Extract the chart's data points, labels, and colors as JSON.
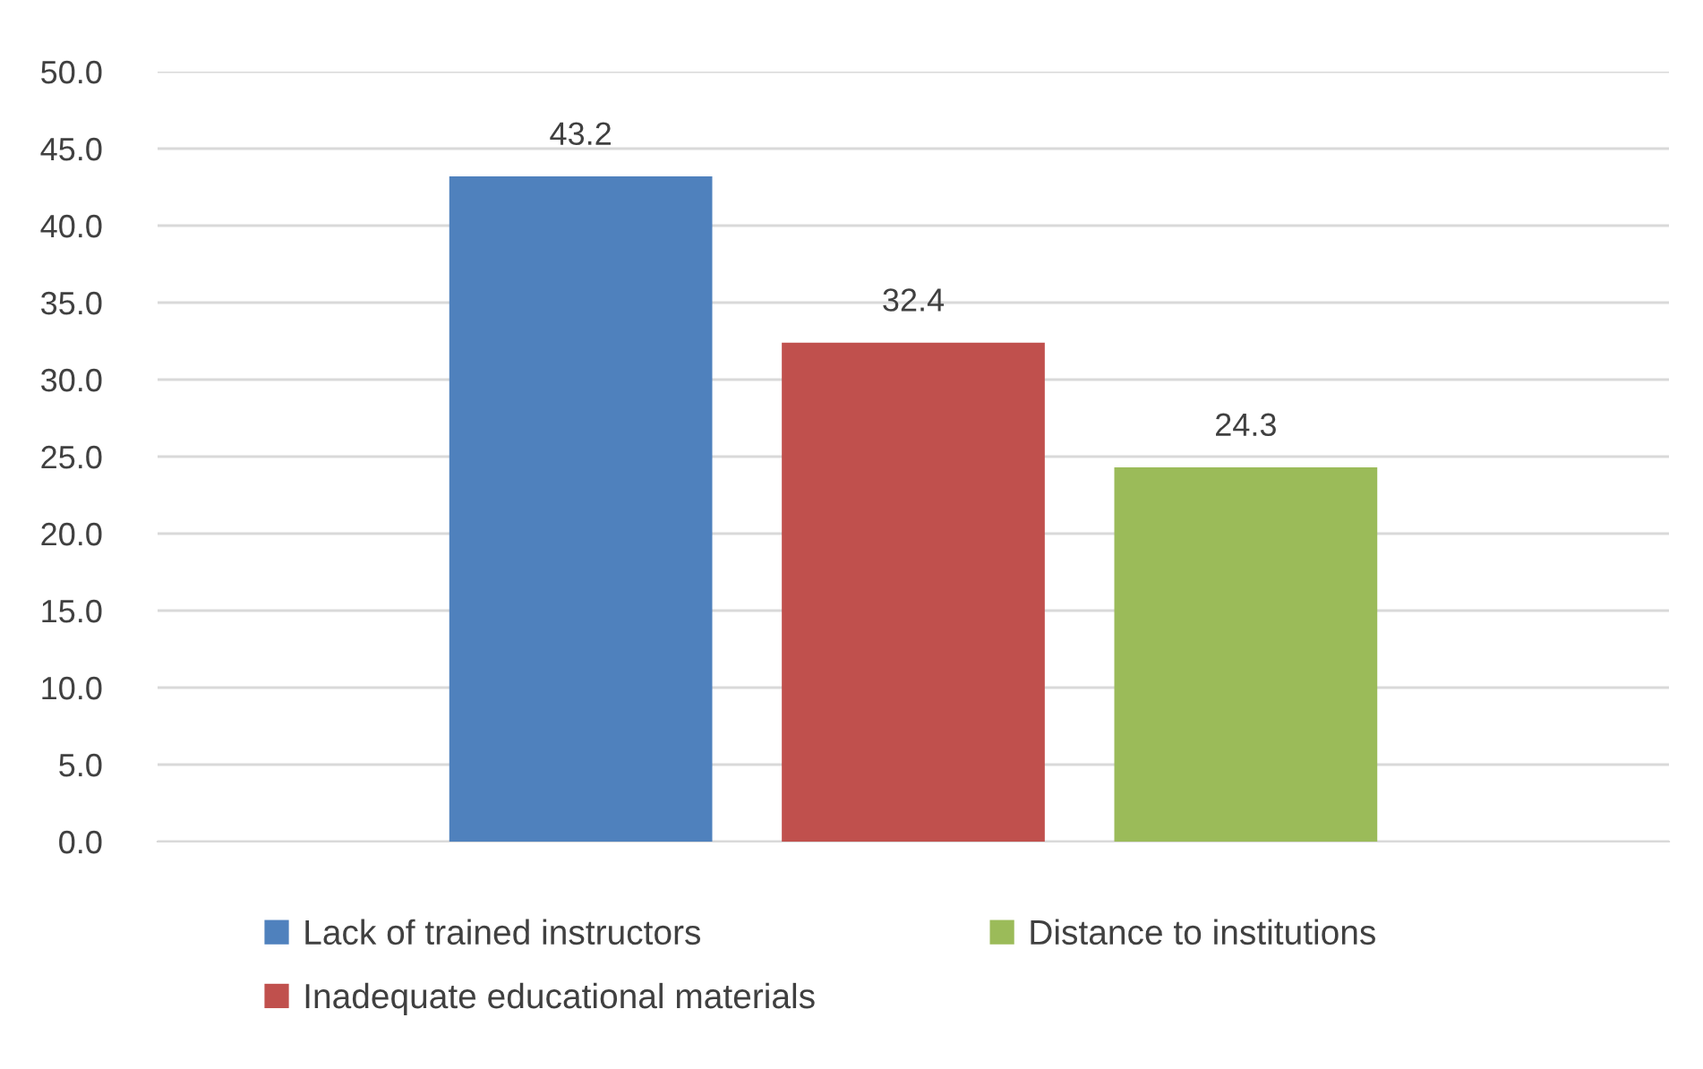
{
  "chart_data": {
    "type": "bar",
    "categories": [
      null
    ],
    "series": [
      {
        "name": "Lack of trained instructors",
        "color": "#4f81bd",
        "values": [
          43.2
        ]
      },
      {
        "name": "Inadequate educational materials",
        "color": "#c0504d",
        "values": [
          32.4
        ]
      },
      {
        "name": "Distance to institutions",
        "color": "#9bbb59",
        "values": [
          24.3
        ]
      }
    ],
    "ylim": [
      0,
      50
    ],
    "yticks": [
      {
        "value": 0,
        "label": "0.0"
      },
      {
        "value": 5,
        "label": "5.0"
      },
      {
        "value": 10,
        "label": "10.0"
      },
      {
        "value": 15,
        "label": "15.0"
      },
      {
        "value": 20,
        "label": "20.0"
      },
      {
        "value": 25,
        "label": "25.0"
      },
      {
        "value": 30,
        "label": "30.0"
      },
      {
        "value": 35,
        "label": "35.0"
      },
      {
        "value": 40,
        "label": "40.0"
      },
      {
        "value": 45,
        "label": "45.0"
      },
      {
        "value": 50,
        "label": "50.0"
      }
    ],
    "grid": "y",
    "data_labels": true,
    "legend": "bottom"
  }
}
